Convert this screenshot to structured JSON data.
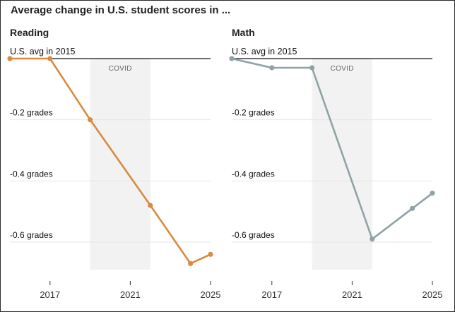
{
  "title": "Average change in U.S. student scores in ...",
  "colors": {
    "reading": "#d98b3f",
    "math": "#8fa3a6",
    "covid_band": "#f2f2f2",
    "grid": "#e6e6e6",
    "baseline": "#111111"
  },
  "chart_data": [
    {
      "type": "line",
      "title": "Reading",
      "reference_label": "U.S. avg in 2015",
      "band_label": "COVID",
      "band_x": [
        2019,
        2022
      ],
      "x_ticks": [
        2017,
        2021,
        2025
      ],
      "y_ticks": [
        {
          "value": -0.2,
          "label": "-0.2 grades"
        },
        {
          "value": -0.4,
          "label": "-0.4 grades"
        },
        {
          "value": -0.6,
          "label": "-0.6 grades"
        }
      ],
      "xlim": [
        2015,
        2025
      ],
      "ylim": [
        -0.69,
        0
      ],
      "series": [
        {
          "x": [
            2015,
            2017,
            2019,
            2022,
            2024,
            2025
          ],
          "y": [
            0.0,
            0.0,
            -0.2,
            -0.48,
            -0.67,
            -0.64
          ]
        }
      ]
    },
    {
      "type": "line",
      "title": "Math",
      "reference_label": "U.S. avg in 2015",
      "band_label": "COVID",
      "band_x": [
        2019,
        2022
      ],
      "x_ticks": [
        2017,
        2021,
        2025
      ],
      "y_ticks": [
        {
          "value": -0.2,
          "label": "-0.2 grades"
        },
        {
          "value": -0.4,
          "label": "-0.4 grades"
        },
        {
          "value": -0.6,
          "label": "-0.6 grades"
        }
      ],
      "xlim": [
        2015,
        2025
      ],
      "ylim": [
        -0.69,
        0
      ],
      "series": [
        {
          "x": [
            2015,
            2017,
            2019,
            2022,
            2024,
            2025
          ],
          "y": [
            0.0,
            -0.03,
            -0.03,
            -0.59,
            -0.49,
            -0.44
          ]
        }
      ]
    }
  ]
}
